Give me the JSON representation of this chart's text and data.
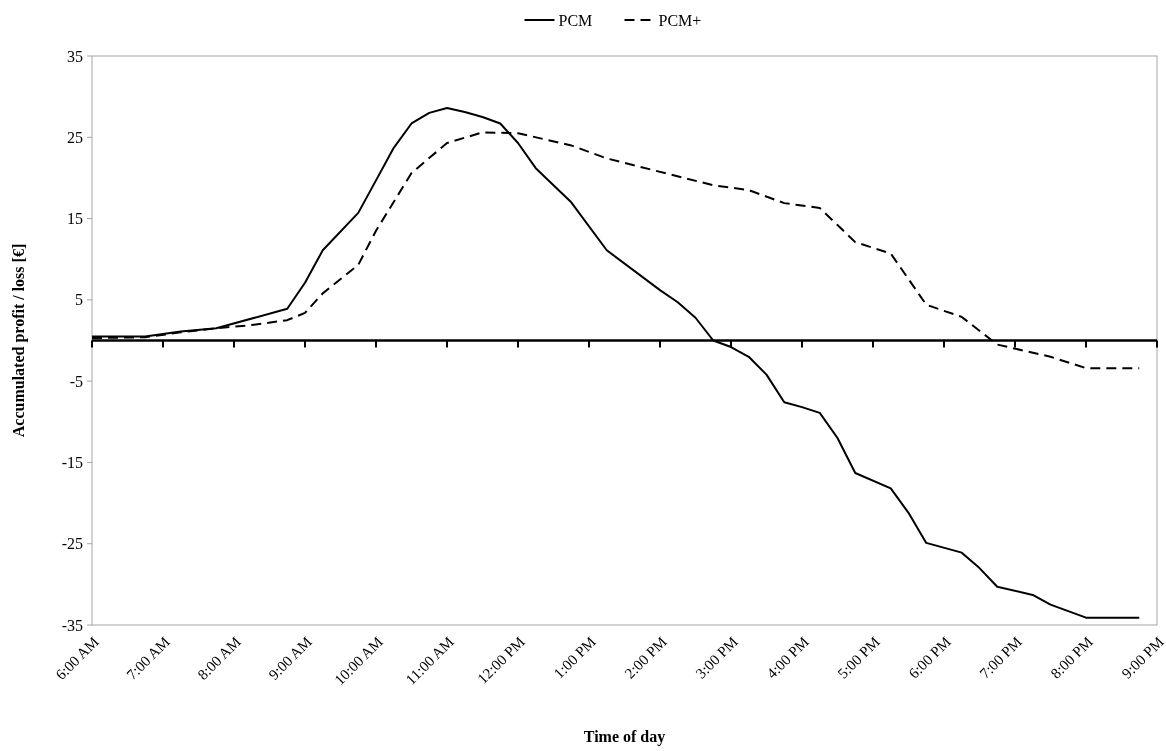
{
  "chart_data": {
    "type": "line",
    "xlabel": "Time of day",
    "ylabel": "Accumulated profit / loss [€]",
    "xlim": [
      6,
      21
    ],
    "ylim": [
      -35,
      35
    ],
    "yticks": [
      -35,
      -25,
      -15,
      -5,
      5,
      15,
      25,
      35
    ],
    "xticks": [
      {
        "value": 6,
        "label": "6:00 AM"
      },
      {
        "value": 7,
        "label": "7:00 AM"
      },
      {
        "value": 8,
        "label": "8:00 AM"
      },
      {
        "value": 9,
        "label": "9:00 AM"
      },
      {
        "value": 10,
        "label": "10:00 AM"
      },
      {
        "value": 11,
        "label": "11:00 AM"
      },
      {
        "value": 12,
        "label": "12:00 PM"
      },
      {
        "value": 13,
        "label": "1:00 PM"
      },
      {
        "value": 14,
        "label": "2:00 PM"
      },
      {
        "value": 15,
        "label": "3:00 PM"
      },
      {
        "value": 16,
        "label": "4:00 PM"
      },
      {
        "value": 17,
        "label": "5:00 PM"
      },
      {
        "value": 18,
        "label": "6:00 PM"
      },
      {
        "value": 19,
        "label": "7:00 PM"
      },
      {
        "value": 20,
        "label": "8:00 PM"
      },
      {
        "value": 21,
        "label": "9:00 PM"
      }
    ],
    "legend": "top",
    "grid": false,
    "series": [
      {
        "name": "PCM",
        "color": "#000000",
        "line_style": "solid",
        "x": [
          6,
          6.75,
          7.25,
          7.75,
          8.75,
          9,
          9.25,
          9.75,
          10,
          10.25,
          10.5,
          10.75,
          11,
          11.25,
          11.5,
          11.75,
          12,
          12.25,
          12.75,
          13.25,
          14,
          14.25,
          14.5,
          14.75,
          15,
          15.25,
          15.5,
          15.75,
          16,
          16.25,
          16.5,
          16.75,
          17.25,
          17.5,
          17.75,
          18.25,
          18.5,
          18.75,
          19.25,
          19.5,
          20,
          20.75
        ],
        "values": [
          0.5,
          0.5,
          1.1,
          1.5,
          3.9,
          7.1,
          11.1,
          15.7,
          19.7,
          23.7,
          26.7,
          28,
          28.6,
          28.1,
          27.5,
          26.7,
          24.3,
          21.2,
          17,
          11.1,
          6.2,
          4.7,
          2.8,
          0,
          -0.8,
          -2,
          -4.2,
          -7.6,
          -8.2,
          -8.9,
          -12,
          -16.3,
          -18.2,
          -21.2,
          -24.9,
          -26.1,
          -28,
          -30.3,
          -31.3,
          -32.5,
          -34.1,
          -34.1
        ]
      },
      {
        "name": "PCM+",
        "color": "#000000",
        "line_style": "dashed",
        "x": [
          6,
          6.75,
          7.25,
          7.75,
          8.25,
          8.75,
          9,
          9.25,
          9.75,
          10,
          10.5,
          11,
          11.5,
          12,
          12.75,
          13.25,
          14.75,
          15.25,
          15.75,
          16.25,
          16.5,
          16.75,
          17.25,
          17.75,
          18.25,
          18.75,
          19.5,
          20,
          20.75
        ],
        "values": [
          0.3,
          0.4,
          1,
          1.5,
          1.9,
          2.5,
          3.4,
          5.8,
          9.3,
          13.5,
          20.6,
          24.3,
          25.6,
          25.5,
          24,
          22.4,
          19.1,
          18.5,
          16.9,
          16.3,
          14.2,
          12.1,
          10.7,
          4.4,
          2.9,
          -0.5,
          -2,
          -3.4,
          -3.4
        ]
      }
    ]
  }
}
